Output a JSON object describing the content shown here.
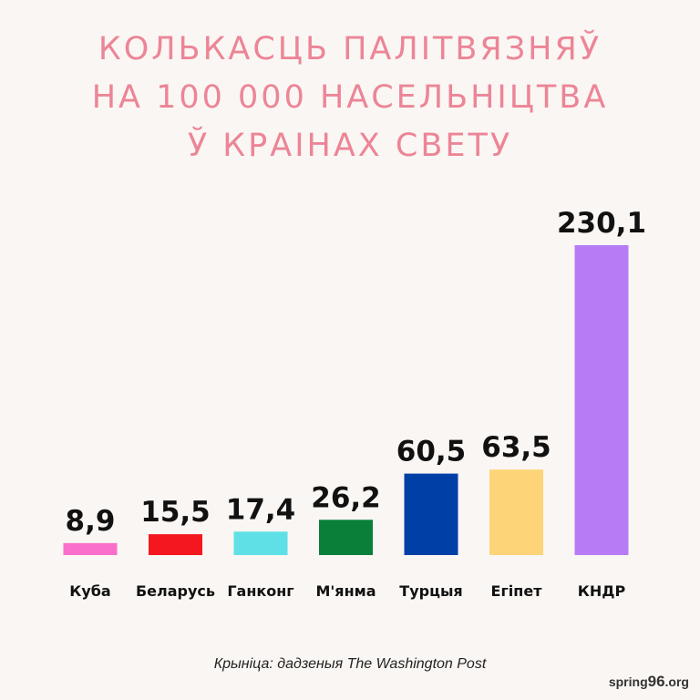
{
  "title": {
    "line1": "Колькасць палітвязняў",
    "line2": "на 100 000 насельніцтва",
    "line3": "ў краінах свету"
  },
  "chart_data": {
    "type": "bar",
    "title": "Колькасць палітвязняў на 100 000 насельніцтва ў краінах свету",
    "categories": [
      "Куба",
      "Беларусь",
      "Ганконг",
      "М'янма",
      "Турцыя",
      "Егіпет",
      "КНДР"
    ],
    "values": [
      8.9,
      15.5,
      17.4,
      26.2,
      60.5,
      63.5,
      230.1
    ],
    "value_labels": [
      "8,9",
      "15,5",
      "17,4",
      "26,2",
      "60,5",
      "63,5",
      "230,1"
    ],
    "colors": [
      "#fa6fcb",
      "#f5171f",
      "#5ee0e6",
      "#0a7f3a",
      "#0040a6",
      "#fdd478",
      "#b77cf5"
    ],
    "xlabel": "",
    "ylabel": "",
    "ylim": [
      0,
      230.1
    ],
    "grid": false,
    "legend": "none"
  },
  "source": "Крыніца: дадзеныя The Washington Post",
  "logo": {
    "part1": "spring",
    "part2": "96",
    "part3": ".org"
  }
}
